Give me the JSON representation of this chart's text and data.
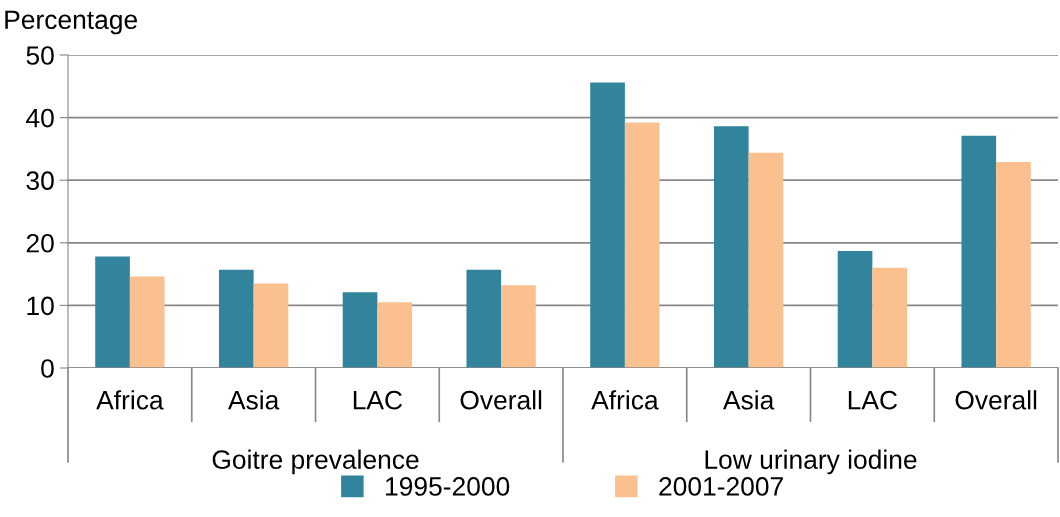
{
  "chart_data": {
    "type": "bar",
    "ylabel": "Percentage",
    "categories": [
      "Africa",
      "Asia",
      "LAC",
      "Overall",
      "Africa",
      "Asia",
      "LAC",
      "Overall"
    ],
    "annotations": [
      "Goitre prevalence",
      "Low urinary iodine"
    ],
    "series": [
      {
        "name": "1995-2000",
        "color": "#31849b",
        "values": [
          17.8,
          15.7,
          12.1,
          15.7,
          45.6,
          38.6,
          18.7,
          37.1
        ]
      },
      {
        "name": "2001-2007",
        "color": "#fac090",
        "values": [
          14.6,
          13.5,
          10.5,
          13.2,
          39.2,
          34.4,
          16.0,
          32.9
        ]
      }
    ],
    "ylim": [
      0,
      50
    ],
    "yticks": [
      0,
      10,
      20,
      30,
      40,
      50
    ],
    "grid": "y",
    "legend": "bottom"
  }
}
